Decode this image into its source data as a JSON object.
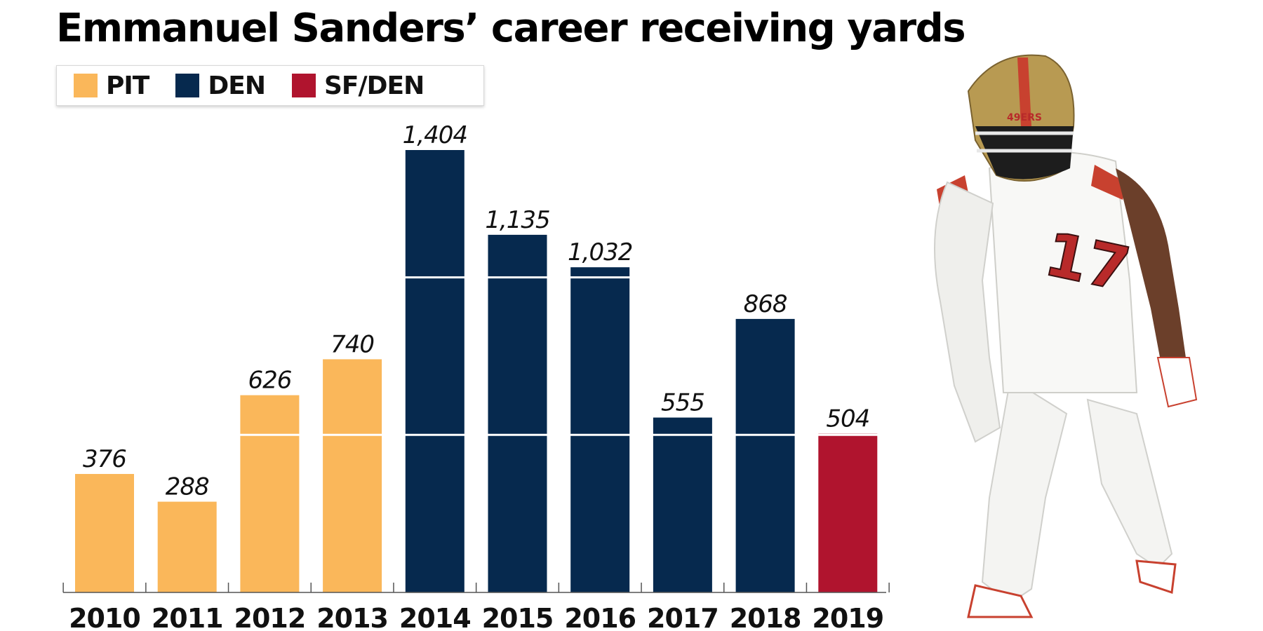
{
  "title": "Emmanuel Sanders’ career receiving yards",
  "legend": [
    {
      "label": "PIT",
      "color": "#fab75a"
    },
    {
      "label": "DEN",
      "color": "#06294e"
    },
    {
      "label": "SF/DEN",
      "color": "#b0142e"
    }
  ],
  "chart_data": {
    "type": "bar",
    "title": "Emmanuel Sanders’ career receiving yards",
    "xlabel": "",
    "ylabel": "",
    "ylim": [
      0,
      1404
    ],
    "gridlines": [
      500,
      1000
    ],
    "categories": [
      "2010",
      "2011",
      "2012",
      "2013",
      "2014",
      "2015",
      "2016",
      "2017",
      "2018",
      "2019"
    ],
    "values": [
      376,
      288,
      626,
      740,
      1404,
      1135,
      1032,
      555,
      868,
      504
    ],
    "value_labels": [
      "376",
      "288",
      "626",
      "740",
      "1,404",
      "1,135",
      "1,032",
      "555",
      "868",
      "504"
    ],
    "teams": [
      "PIT",
      "PIT",
      "PIT",
      "PIT",
      "DEN",
      "DEN",
      "DEN",
      "DEN",
      "DEN",
      "SF/DEN"
    ],
    "team_colors": {
      "PIT": "#fab75a",
      "DEN": "#06294e",
      "SF/DEN": "#b0142e"
    }
  },
  "photo": {
    "subject": "football-player-photo",
    "jersey_number": "17",
    "helmet_text": "49ERS"
  }
}
